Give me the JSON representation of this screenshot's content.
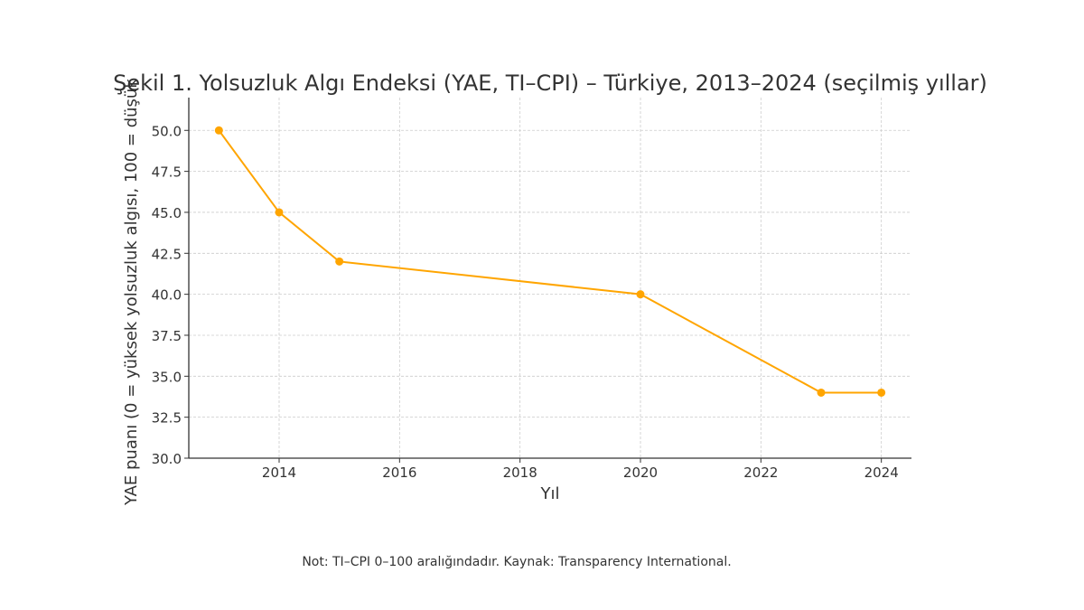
{
  "chart_data": {
    "type": "line",
    "title": "Şekil 1. Yolsuzluk Algı Endeksi (YAE, TI–CPI) – Türkiye, 2013–2024 (seçilmiş yıllar)",
    "xlabel": "Yıl",
    "ylabel": "YAE puanı (0 = yüksek yolsuzluk algısı, 100 = düşük",
    "x": [
      2013,
      2014,
      2015,
      2020,
      2023,
      2024
    ],
    "series": [
      {
        "values": [
          50,
          45,
          42,
          40,
          34,
          34
        ],
        "color": "#FFA500",
        "marker": "circle"
      }
    ],
    "xlim": [
      2012.5,
      2024.5
    ],
    "ylim": [
      30,
      52
    ],
    "xticks": [
      "2014",
      "2016",
      "2018",
      "2020",
      "2022",
      "2024"
    ],
    "yticks": [
      "30.0",
      "32.5",
      "35.0",
      "37.5",
      "40.0",
      "42.5",
      "45.0",
      "47.5",
      "50.0"
    ],
    "grid": true,
    "note": "Not: TI–CPI 0–100 aralığındadır. Kaynak: Transparency International."
  }
}
